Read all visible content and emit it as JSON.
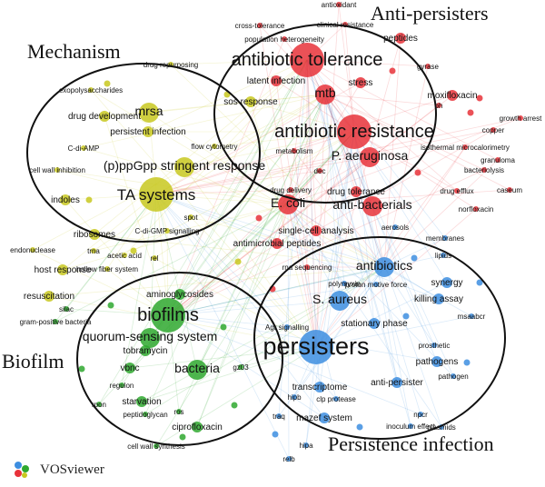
{
  "cluster_titles": {
    "mechanism": "Mechanism",
    "anti_persisters": "Anti-persisters",
    "biofilm": "Biofilm",
    "persistence_infection": "Persistence infection"
  },
  "colors": {
    "red": "#e8323a",
    "yellow": "#c8c820",
    "green": "#2fa82f",
    "blue": "#3d8ee0",
    "pink": "#f2a6a6",
    "grey": "#b8b8b8"
  },
  "brand": {
    "name": "VOSviewer",
    "icon": "vosviewer-logo-icon"
  },
  "nodes": [
    {
      "id": "antibiotic-tolerance",
      "label": "antibiotic tolerance",
      "c": "red",
      "s": 3
    },
    {
      "id": "mtb",
      "label": "mtb",
      "c": "red",
      "s": 2
    },
    {
      "id": "antibiotic-resistance",
      "label": "antibiotic resistance",
      "c": "red",
      "s": 3
    },
    {
      "id": "p-aeruginosa",
      "label": "P. aeruginosa",
      "c": "red",
      "s": 2
    },
    {
      "id": "e-coli",
      "label": "E. coli",
      "c": "red",
      "s": 2
    },
    {
      "id": "anti-bacterials",
      "label": "anti-bacterials",
      "c": "red",
      "s": 2
    },
    {
      "id": "drug-tolerance",
      "label": "drug tolerance",
      "c": "red",
      "s": 1
    },
    {
      "id": "antimicrobial-peptides",
      "label": "antimicrobial peptides",
      "c": "red",
      "s": 1
    },
    {
      "id": "single-cell-analysis",
      "label": "single-cell analysis",
      "c": "red",
      "s": 1
    },
    {
      "id": "latent-infection",
      "label": "latent infection",
      "c": "red",
      "s": 1
    },
    {
      "id": "stress",
      "label": "stress",
      "c": "red",
      "s": 1
    },
    {
      "id": "moxifloxacin",
      "label": "moxifloxacin",
      "c": "red",
      "s": 1
    },
    {
      "id": "peptides",
      "label": "peptides",
      "c": "red",
      "s": 1
    },
    {
      "id": "gyrase",
      "label": "gyrase",
      "c": "red",
      "s": 0
    },
    {
      "id": "population-heterogeneity",
      "label": "population heterogeneity",
      "c": "red",
      "s": 0
    },
    {
      "id": "cross-tolerance",
      "label": "cross-tolerance",
      "c": "red",
      "s": 0
    },
    {
      "id": "clinical-resistance",
      "label": "clinical resistance",
      "c": "red",
      "s": 0
    },
    {
      "id": "antioxidant",
      "label": "antioxidant",
      "c": "red",
      "s": 0
    },
    {
      "id": "growth-arrest",
      "label": "growth arrest",
      "c": "red",
      "s": 0
    },
    {
      "id": "copper",
      "label": "copper",
      "c": "red",
      "s": 0
    },
    {
      "id": "isothermal-microcalorimetry",
      "label": "isothermal microcalorimetry",
      "c": "red",
      "s": 0
    },
    {
      "id": "granuloma",
      "label": "granuloma",
      "c": "red",
      "s": 0
    },
    {
      "id": "bacteriolysis",
      "label": "bacteriolysis",
      "c": "red",
      "s": 0
    },
    {
      "id": "caseum",
      "label": "caseum",
      "c": "red",
      "s": 0
    },
    {
      "id": "drug-efflux",
      "label": "drug efflux",
      "c": "red",
      "s": 0
    },
    {
      "id": "norfloxacin",
      "label": "norfloxacin",
      "c": "red",
      "s": 0
    },
    {
      "id": "dec",
      "label": "dec",
      "c": "red",
      "s": 0
    },
    {
      "id": "drug-delivery",
      "label": "drug delivery",
      "c": "red",
      "s": 0
    },
    {
      "id": "metabolism",
      "label": "metabolism",
      "c": "red",
      "s": 0
    },
    {
      "id": "rna-sequencing",
      "label": "rna sequencing",
      "c": "red",
      "s": 0
    },
    {
      "id": "ph",
      "label": "ph",
      "c": "red",
      "s": 0
    },
    {
      "id": "mrsa",
      "label": "mrsa",
      "c": "yellow",
      "s": 2
    },
    {
      "id": "persistent-infection",
      "label": "persistent infection",
      "c": "yellow",
      "s": 1
    },
    {
      "id": "ppgpp-stringent-response",
      "label": "(p)ppGpp stringent response",
      "c": "yellow",
      "s": 2
    },
    {
      "id": "ta-systems",
      "label": "TA systems",
      "c": "yellow",
      "s": 3
    },
    {
      "id": "indoles",
      "label": "indoles",
      "c": "yellow",
      "s": 1
    },
    {
      "id": "exopolysaccharides",
      "label": "exopolysaccharides",
      "c": "yellow",
      "s": 0
    },
    {
      "id": "drug-repurposing",
      "label": "drug repurposing",
      "c": "yellow",
      "s": 0
    },
    {
      "id": "drug-development",
      "label": "drug development",
      "c": "yellow",
      "s": 1
    },
    {
      "id": "c-di-amp",
      "label": "C-di-AMP",
      "c": "yellow",
      "s": 0
    },
    {
      "id": "flow-cytometry",
      "label": "flow cytometry",
      "c": "yellow",
      "s": 0
    },
    {
      "id": "sos-response",
      "label": "sos response",
      "c": "yellow",
      "s": 1
    },
    {
      "id": "cell-wall-inhibition",
      "label": "cell wall inhibition",
      "c": "yellow",
      "s": 0
    },
    {
      "id": "c-di-gmp-signalling",
      "label": "C-di-GMP signalling",
      "c": "yellow",
      "s": 0
    },
    {
      "id": "spot",
      "label": "spot",
      "c": "yellow",
      "s": 0
    },
    {
      "id": "ribosomes",
      "label": "ribosomes",
      "c": "yellow",
      "s": 1
    },
    {
      "id": "endonuclease",
      "label": "endonuclease",
      "c": "yellow",
      "s": 0
    },
    {
      "id": "trna",
      "label": "trna",
      "c": "yellow",
      "s": 0
    },
    {
      "id": "acetic-acid",
      "label": "acetic acid",
      "c": "yellow",
      "s": 0
    },
    {
      "id": "rel",
      "label": "rel",
      "c": "yellow",
      "s": 0
    },
    {
      "id": "host-response",
      "label": "host response",
      "c": "yellow",
      "s": 1
    },
    {
      "id": "hollow-fiber-system",
      "label": "hollow fiber system",
      "c": "yellow",
      "s": 0
    },
    {
      "id": "resuscitation",
      "label": "resuscitation",
      "c": "yellow",
      "s": 1
    },
    {
      "id": "biofilms",
      "label": "biofilms",
      "c": "green",
      "s": 3
    },
    {
      "id": "quorum-sensing-system",
      "label": "quorum-sensing system",
      "c": "green",
      "s": 2
    },
    {
      "id": "aminoglycosides",
      "label": "aminoglycosides",
      "c": "green",
      "s": 1
    },
    {
      "id": "tobramycin",
      "label": "tobramycin",
      "c": "green",
      "s": 1
    },
    {
      "id": "vbnc",
      "label": "vbnc",
      "c": "green",
      "s": 1
    },
    {
      "id": "bacteria",
      "label": "bacteria",
      "c": "green",
      "s": 2
    },
    {
      "id": "regulon",
      "label": "regulon",
      "c": "green",
      "s": 0
    },
    {
      "id": "starvation",
      "label": "starvation",
      "c": "green",
      "s": 1
    },
    {
      "id": "peptidoglycan",
      "label": "peptidoglycan",
      "c": "green",
      "s": 0
    },
    {
      "id": "ros",
      "label": "ros",
      "c": "green",
      "s": 0
    },
    {
      "id": "ciprofloxacin",
      "label": "ciprofloxacin",
      "c": "green",
      "s": 1
    },
    {
      "id": "rpon",
      "label": "rpon",
      "c": "green",
      "s": 0
    },
    {
      "id": "cell-wall-synthesis",
      "label": "cell wall synthesis",
      "c": "green",
      "s": 0
    },
    {
      "id": "gram-positive-bacteria",
      "label": "gram-positive bacteria",
      "c": "green",
      "s": 0
    },
    {
      "id": "silac",
      "label": "silac",
      "c": "green",
      "s": 0
    },
    {
      "id": "gz03",
      "label": "gz03",
      "c": "green",
      "s": 0
    },
    {
      "id": "persisters",
      "label": "persisters",
      "c": "blue",
      "s": 3
    },
    {
      "id": "antibiotics",
      "label": "antibiotics",
      "c": "blue",
      "s": 2
    },
    {
      "id": "s-aureus",
      "label": "S. aureus",
      "c": "blue",
      "s": 2
    },
    {
      "id": "stationary-phase",
      "label": "stationary phase",
      "c": "blue",
      "s": 1
    },
    {
      "id": "synergy",
      "label": "synergy",
      "c": "blue",
      "s": 1
    },
    {
      "id": "killing-assay",
      "label": "killing assay",
      "c": "blue",
      "s": 1
    },
    {
      "id": "proton-motive-force",
      "label": "proton motive force",
      "c": "blue",
      "s": 0
    },
    {
      "id": "msaabcr",
      "label": "msaabcr",
      "c": "blue",
      "s": 0
    },
    {
      "id": "prosthetic",
      "label": "prosthetic",
      "c": "blue",
      "s": 0
    },
    {
      "id": "pathogens",
      "label": "pathogens",
      "c": "blue",
      "s": 1
    },
    {
      "id": "pathogen",
      "label": "pathogen",
      "c": "blue",
      "s": 0
    },
    {
      "id": "anti-persister",
      "label": "anti-persister",
      "c": "blue",
      "s": 1
    },
    {
      "id": "transcriptome",
      "label": "transcriptome",
      "c": "blue",
      "s": 1
    },
    {
      "id": "clp-protease",
      "label": "clp protease",
      "c": "blue",
      "s": 0
    },
    {
      "id": "mazef-system",
      "label": "mazef system",
      "c": "blue",
      "s": 1
    },
    {
      "id": "hipb",
      "label": "hipb",
      "c": "blue",
      "s": 0
    },
    {
      "id": "traq",
      "label": "traq",
      "c": "blue",
      "s": 0
    },
    {
      "id": "npcr",
      "label": "npcr",
      "c": "blue",
      "s": 0
    },
    {
      "id": "plasmids",
      "label": "plasmids",
      "c": "blue",
      "s": 0
    },
    {
      "id": "inoculum-effect",
      "label": "inoculum effect",
      "c": "blue",
      "s": 0
    },
    {
      "id": "hipa",
      "label": "hipa",
      "c": "blue",
      "s": 0
    },
    {
      "id": "relb",
      "label": "relb",
      "c": "blue",
      "s": 0
    },
    {
      "id": "agr-signalling",
      "label": "Agr signalling",
      "c": "blue",
      "s": 0
    },
    {
      "id": "aerosols",
      "label": "aerosols",
      "c": "blue",
      "s": 0
    },
    {
      "id": "membranes",
      "label": "membranes",
      "c": "blue",
      "s": 0
    },
    {
      "id": "lipids",
      "label": "lipids",
      "c": "blue",
      "s": 0
    },
    {
      "id": "polymyxin",
      "label": "polymyxin",
      "c": "blue",
      "s": 0
    }
  ]
}
